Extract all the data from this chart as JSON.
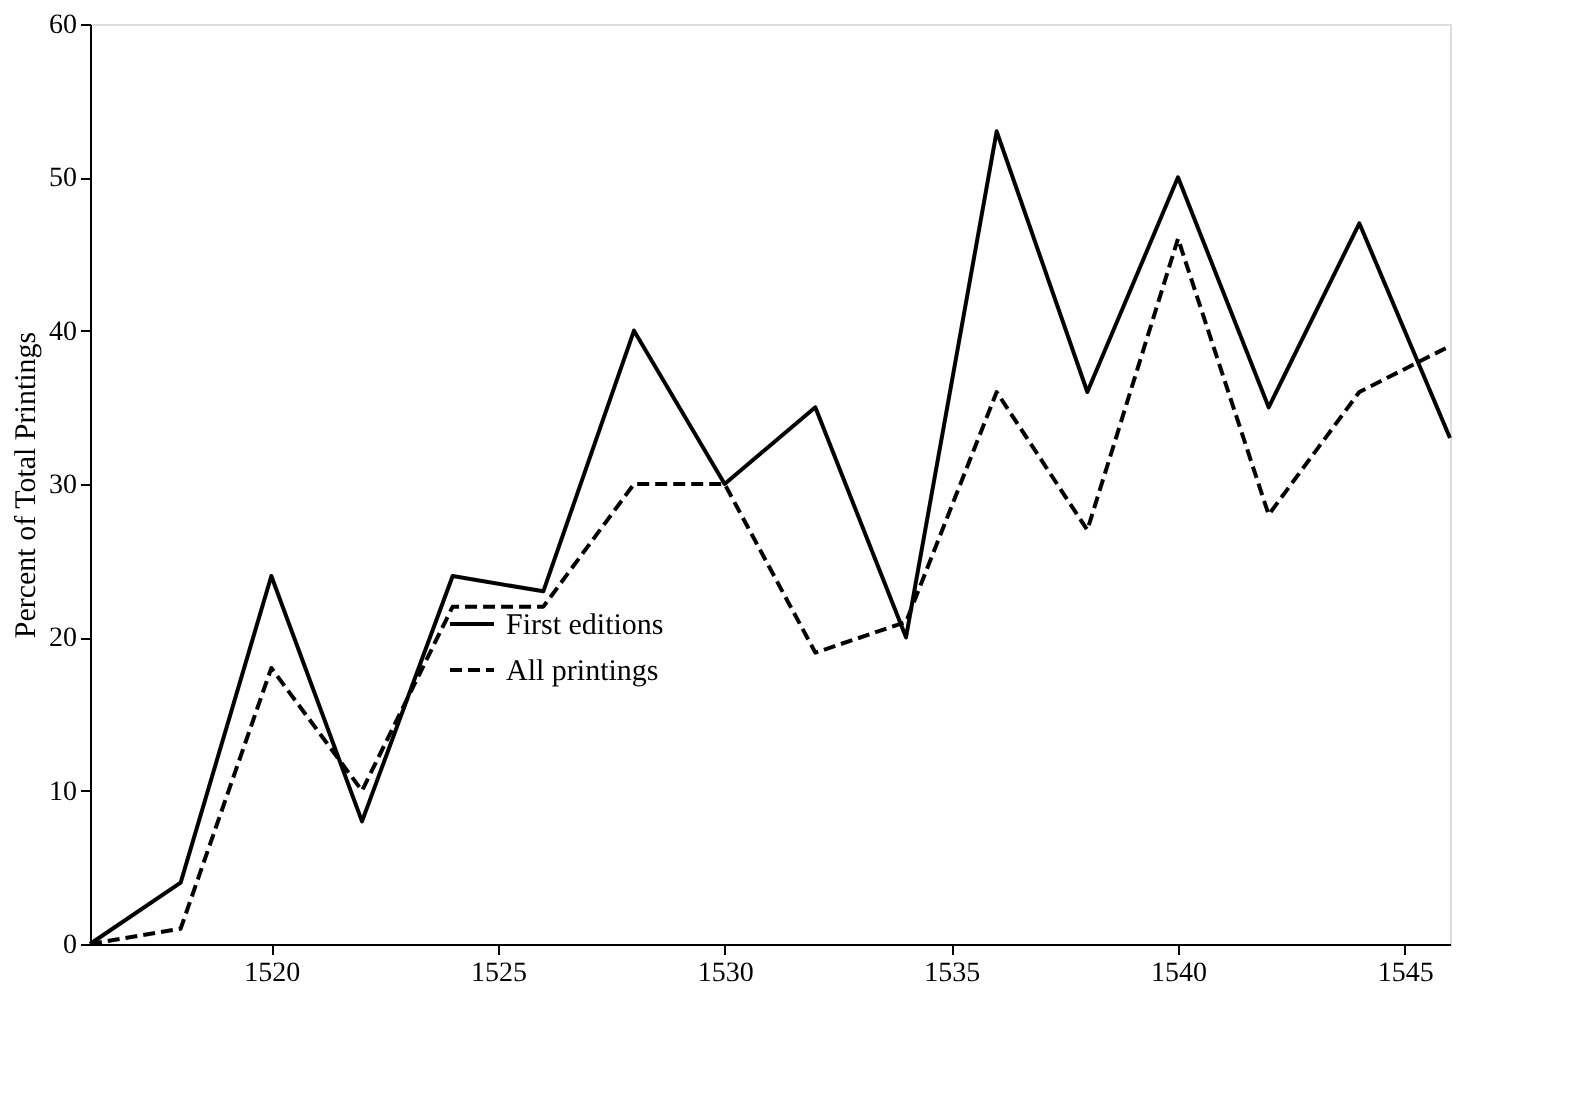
{
  "chart_data": {
    "type": "line",
    "ylabel": "Percent of Total Printings",
    "x": [
      1516,
      1518,
      1520,
      1522,
      1524,
      1526,
      1528,
      1530,
      1532,
      1534,
      1536,
      1538,
      1540,
      1542,
      1544,
      1546
    ],
    "series": [
      {
        "name": "First editions",
        "color": "#000000",
        "line_style": "solid",
        "values": [
          0,
          4,
          24,
          8,
          24,
          23,
          40,
          30,
          35,
          20,
          53,
          36,
          50,
          35,
          47,
          33
        ]
      },
      {
        "name": "All printings",
        "color": "#000000",
        "line_style": "dashed",
        "values": [
          0,
          1,
          18,
          10,
          22,
          22,
          30,
          30,
          19,
          21,
          36,
          27,
          46,
          28,
          36,
          39
        ]
      }
    ],
    "xlim": [
      1516,
      1546
    ],
    "xticks": [
      1520,
      1525,
      1530,
      1535,
      1540,
      1545
    ],
    "ylim": [
      0,
      60
    ],
    "yticks": [
      0,
      10,
      20,
      30,
      40,
      50,
      60
    ],
    "grid": false,
    "legend": "bottom",
    "marker": "none"
  }
}
